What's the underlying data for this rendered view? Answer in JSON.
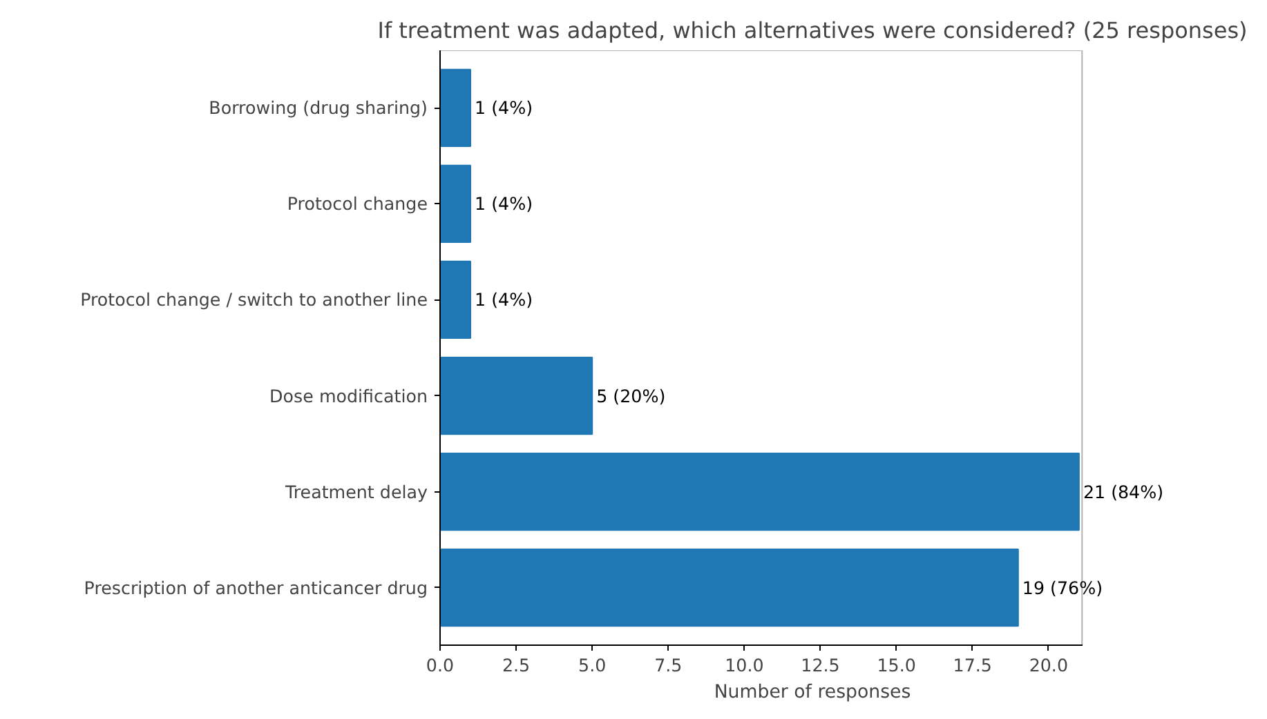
{
  "chart_data": {
    "type": "bar",
    "orientation": "horizontal",
    "title": "If treatment was adapted, which alternatives were considered? (25 responses)",
    "xlabel": "Number of responses",
    "categories": [
      "Borrowing (drug sharing)",
      "Protocol change",
      "Protocol change / switch to another line",
      "Dose modification",
      "Treatment delay",
      "Prescription of another anticancer drug"
    ],
    "values": [
      1,
      1,
      1,
      5,
      21,
      19
    ],
    "value_labels": [
      "1 (4%)",
      "1 (4%)",
      "1 (4%)",
      "5 (20%)",
      "21 (84%)",
      "19 (76%)"
    ],
    "color": "#1f77b4",
    "xlim": [
      0,
      21.1
    ],
    "xticks": [
      {
        "value": 0,
        "label": "0.0"
      },
      {
        "value": 2.5,
        "label": "2.5"
      },
      {
        "value": 5,
        "label": "5.0"
      },
      {
        "value": 7.5,
        "label": "7.5"
      },
      {
        "value": 10,
        "label": "10.0"
      },
      {
        "value": 12.5,
        "label": "12.5"
      },
      {
        "value": 15,
        "label": "15.0"
      },
      {
        "value": 17.5,
        "label": "17.5"
      },
      {
        "value": 20,
        "label": "20.0"
      }
    ],
    "grid": false
  }
}
